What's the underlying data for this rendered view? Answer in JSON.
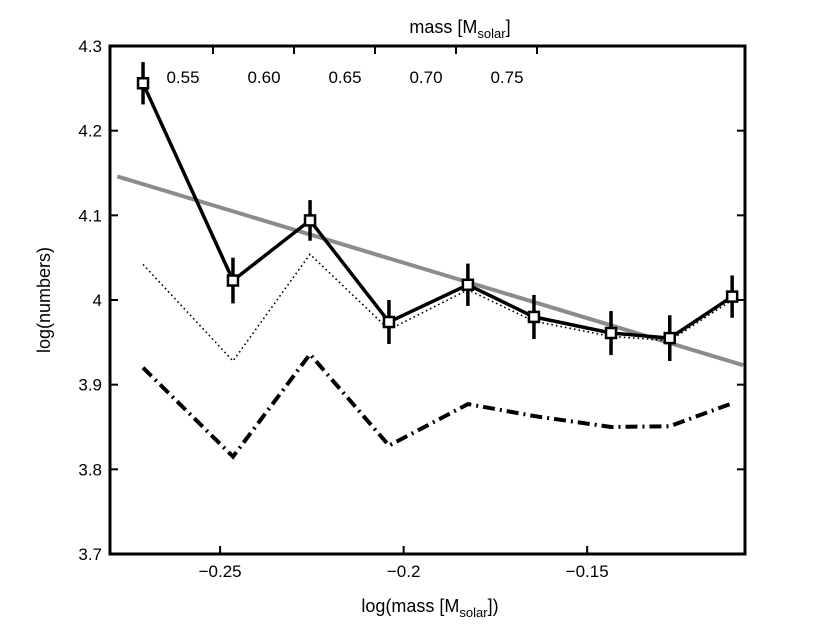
{
  "chart_data": {
    "type": "line",
    "xlabel": {
      "main": "log(mass [M",
      "sub": "solar",
      "tail": "])"
    },
    "ylabel": "log(numbers)",
    "top_label": {
      "main": "mass [M",
      "sub": "solar",
      "tail": "]"
    },
    "xlim": [
      -0.28,
      -0.107
    ],
    "ylim": [
      3.7,
      4.3
    ],
    "x_ticks": [
      -0.25,
      -0.2,
      -0.15
    ],
    "x_tick_labels": [
      "−0.25",
      "−0.2",
      "−0.15"
    ],
    "y_ticks": [
      3.7,
      3.8,
      3.9,
      4.0,
      4.1,
      4.2,
      4.3
    ],
    "y_tick_labels": [
      "3.7",
      "3.8",
      "3.9",
      "4",
      "4.1",
      "4.2",
      "4.3"
    ],
    "top_ticks": [
      0.55,
      0.6,
      0.65,
      0.7,
      0.75
    ],
    "top_tick_labels": [
      "0.55",
      "0.60",
      "0.65",
      "0.70",
      "0.75"
    ],
    "grid": false,
    "series": [
      {
        "style": "solid-black-squares-errorbars",
        "x": [
          -0.271,
          -0.2465,
          -0.2255,
          -0.204,
          -0.1825,
          -0.1645,
          -0.1435,
          -0.1275,
          -0.1105
        ],
        "y": [
          4.256,
          4.023,
          4.094,
          3.974,
          4.018,
          3.98,
          3.961,
          3.955,
          4.004
        ],
        "yerr": [
          0.025,
          0.027,
          0.024,
          0.026,
          0.025,
          0.026,
          0.026,
          0.027,
          0.025
        ]
      },
      {
        "style": "gray-solid-fit",
        "x": [
          -0.278,
          -0.1075
        ],
        "y": [
          4.146,
          3.923
        ]
      },
      {
        "style": "dotted-black",
        "x": [
          -0.271,
          -0.2465,
          -0.2255,
          -0.204,
          -0.1825,
          -0.1645,
          -0.1435,
          -0.1275,
          -0.1105
        ],
        "y": [
          4.042,
          3.928,
          4.054,
          3.965,
          4.012,
          3.975,
          3.957,
          3.952,
          4.0
        ]
      },
      {
        "style": "dashdot-black",
        "x": [
          -0.271,
          -0.2465,
          -0.2255,
          -0.204,
          -0.1825,
          -0.1645,
          -0.1435,
          -0.1275,
          -0.1105
        ],
        "y": [
          3.92,
          3.815,
          3.936,
          3.828,
          3.877,
          3.863,
          3.85,
          3.851,
          3.878
        ]
      }
    ]
  }
}
